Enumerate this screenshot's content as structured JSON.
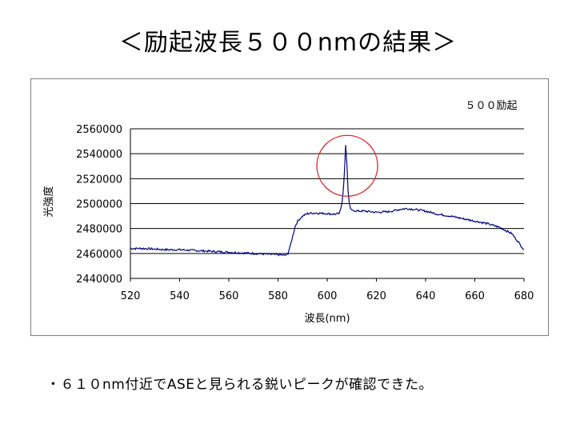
{
  "slide": {
    "title": "＜励起波長５００nmの結果＞",
    "caption": "・６１０nm付近でASEと見られる鋭いピークが確認できた。"
  },
  "chart_data": {
    "type": "line",
    "title": "５００励起",
    "xlabel": "波長(nm)",
    "ylabel": "光強度",
    "xlim": [
      520,
      680
    ],
    "ylim": [
      2440000,
      2560000
    ],
    "x_ticks": [
      520,
      540,
      560,
      580,
      600,
      620,
      640,
      660,
      680
    ],
    "y_ticks": [
      2440000,
      2460000,
      2480000,
      2500000,
      2520000,
      2540000,
      2560000
    ],
    "grid": true,
    "legend": "none",
    "series": [
      {
        "color": "#000080",
        "x": [
          520,
          525,
          530,
          535,
          540,
          545,
          550,
          555,
          560,
          565,
          570,
          575,
          580,
          583,
          584,
          585,
          586,
          587,
          588,
          589,
          590,
          592,
          595,
          600,
          603,
          605,
          606,
          606.5,
          607,
          607.5,
          608,
          608.5,
          609,
          609.5,
          610,
          611,
          612,
          615,
          620,
          625,
          630,
          632,
          635,
          640,
          645,
          650,
          655,
          660,
          665,
          670,
          675,
          677,
          680
        ],
        "y": [
          2464000,
          2464000,
          2463500,
          2463000,
          2463000,
          2462500,
          2462000,
          2461500,
          2461000,
          2460500,
          2460000,
          2459500,
          2459000,
          2458500,
          2460000,
          2466000,
          2474000,
          2482000,
          2486000,
          2488000,
          2490000,
          2492000,
          2492500,
          2492000,
          2491500,
          2492000,
          2500000,
          2510000,
          2525000,
          2547000,
          2532000,
          2510000,
          2500000,
          2496000,
          2495000,
          2494500,
          2494000,
          2494000,
          2493000,
          2493500,
          2495500,
          2496000,
          2495500,
          2494000,
          2491500,
          2490000,
          2488000,
          2486000,
          2484000,
          2481000,
          2476000,
          2471000,
          2463000
        ]
      }
    ],
    "annotation": {
      "shape": "circle",
      "color": "#d62828"
    }
  }
}
